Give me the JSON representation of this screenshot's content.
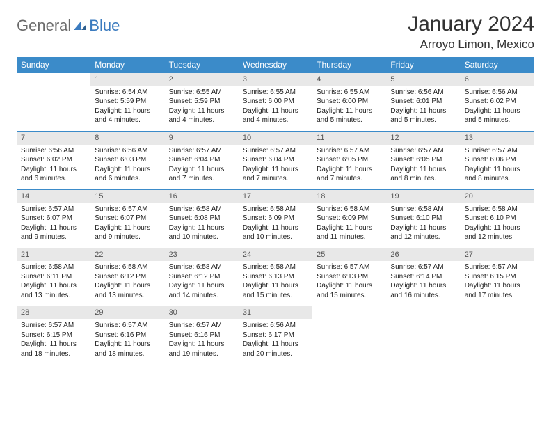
{
  "logo": {
    "text1": "General",
    "text2": "Blue"
  },
  "title": "January 2024",
  "location": "Arroyo Limon, Mexico",
  "colors": {
    "header_bg": "#3b8bc9",
    "header_fg": "#ffffff",
    "daynum_bg": "#e8e8e8",
    "row_border": "#3b8bc9",
    "logo_gray": "#6b6b6b",
    "logo_blue": "#3b7bbf"
  },
  "weekdays": [
    "Sunday",
    "Monday",
    "Tuesday",
    "Wednesday",
    "Thursday",
    "Friday",
    "Saturday"
  ],
  "weeks": [
    [
      null,
      {
        "n": "1",
        "sr": "Sunrise: 6:54 AM",
        "ss": "Sunset: 5:59 PM",
        "d1": "Daylight: 11 hours",
        "d2": "and 4 minutes."
      },
      {
        "n": "2",
        "sr": "Sunrise: 6:55 AM",
        "ss": "Sunset: 5:59 PM",
        "d1": "Daylight: 11 hours",
        "d2": "and 4 minutes."
      },
      {
        "n": "3",
        "sr": "Sunrise: 6:55 AM",
        "ss": "Sunset: 6:00 PM",
        "d1": "Daylight: 11 hours",
        "d2": "and 4 minutes."
      },
      {
        "n": "4",
        "sr": "Sunrise: 6:55 AM",
        "ss": "Sunset: 6:00 PM",
        "d1": "Daylight: 11 hours",
        "d2": "and 5 minutes."
      },
      {
        "n": "5",
        "sr": "Sunrise: 6:56 AM",
        "ss": "Sunset: 6:01 PM",
        "d1": "Daylight: 11 hours",
        "d2": "and 5 minutes."
      },
      {
        "n": "6",
        "sr": "Sunrise: 6:56 AM",
        "ss": "Sunset: 6:02 PM",
        "d1": "Daylight: 11 hours",
        "d2": "and 5 minutes."
      }
    ],
    [
      {
        "n": "7",
        "sr": "Sunrise: 6:56 AM",
        "ss": "Sunset: 6:02 PM",
        "d1": "Daylight: 11 hours",
        "d2": "and 6 minutes."
      },
      {
        "n": "8",
        "sr": "Sunrise: 6:56 AM",
        "ss": "Sunset: 6:03 PM",
        "d1": "Daylight: 11 hours",
        "d2": "and 6 minutes."
      },
      {
        "n": "9",
        "sr": "Sunrise: 6:57 AM",
        "ss": "Sunset: 6:04 PM",
        "d1": "Daylight: 11 hours",
        "d2": "and 7 minutes."
      },
      {
        "n": "10",
        "sr": "Sunrise: 6:57 AM",
        "ss": "Sunset: 6:04 PM",
        "d1": "Daylight: 11 hours",
        "d2": "and 7 minutes."
      },
      {
        "n": "11",
        "sr": "Sunrise: 6:57 AM",
        "ss": "Sunset: 6:05 PM",
        "d1": "Daylight: 11 hours",
        "d2": "and 7 minutes."
      },
      {
        "n": "12",
        "sr": "Sunrise: 6:57 AM",
        "ss": "Sunset: 6:05 PM",
        "d1": "Daylight: 11 hours",
        "d2": "and 8 minutes."
      },
      {
        "n": "13",
        "sr": "Sunrise: 6:57 AM",
        "ss": "Sunset: 6:06 PM",
        "d1": "Daylight: 11 hours",
        "d2": "and 8 minutes."
      }
    ],
    [
      {
        "n": "14",
        "sr": "Sunrise: 6:57 AM",
        "ss": "Sunset: 6:07 PM",
        "d1": "Daylight: 11 hours",
        "d2": "and 9 minutes."
      },
      {
        "n": "15",
        "sr": "Sunrise: 6:57 AM",
        "ss": "Sunset: 6:07 PM",
        "d1": "Daylight: 11 hours",
        "d2": "and 9 minutes."
      },
      {
        "n": "16",
        "sr": "Sunrise: 6:58 AM",
        "ss": "Sunset: 6:08 PM",
        "d1": "Daylight: 11 hours",
        "d2": "and 10 minutes."
      },
      {
        "n": "17",
        "sr": "Sunrise: 6:58 AM",
        "ss": "Sunset: 6:09 PM",
        "d1": "Daylight: 11 hours",
        "d2": "and 10 minutes."
      },
      {
        "n": "18",
        "sr": "Sunrise: 6:58 AM",
        "ss": "Sunset: 6:09 PM",
        "d1": "Daylight: 11 hours",
        "d2": "and 11 minutes."
      },
      {
        "n": "19",
        "sr": "Sunrise: 6:58 AM",
        "ss": "Sunset: 6:10 PM",
        "d1": "Daylight: 11 hours",
        "d2": "and 12 minutes."
      },
      {
        "n": "20",
        "sr": "Sunrise: 6:58 AM",
        "ss": "Sunset: 6:10 PM",
        "d1": "Daylight: 11 hours",
        "d2": "and 12 minutes."
      }
    ],
    [
      {
        "n": "21",
        "sr": "Sunrise: 6:58 AM",
        "ss": "Sunset: 6:11 PM",
        "d1": "Daylight: 11 hours",
        "d2": "and 13 minutes."
      },
      {
        "n": "22",
        "sr": "Sunrise: 6:58 AM",
        "ss": "Sunset: 6:12 PM",
        "d1": "Daylight: 11 hours",
        "d2": "and 13 minutes."
      },
      {
        "n": "23",
        "sr": "Sunrise: 6:58 AM",
        "ss": "Sunset: 6:12 PM",
        "d1": "Daylight: 11 hours",
        "d2": "and 14 minutes."
      },
      {
        "n": "24",
        "sr": "Sunrise: 6:58 AM",
        "ss": "Sunset: 6:13 PM",
        "d1": "Daylight: 11 hours",
        "d2": "and 15 minutes."
      },
      {
        "n": "25",
        "sr": "Sunrise: 6:57 AM",
        "ss": "Sunset: 6:13 PM",
        "d1": "Daylight: 11 hours",
        "d2": "and 15 minutes."
      },
      {
        "n": "26",
        "sr": "Sunrise: 6:57 AM",
        "ss": "Sunset: 6:14 PM",
        "d1": "Daylight: 11 hours",
        "d2": "and 16 minutes."
      },
      {
        "n": "27",
        "sr": "Sunrise: 6:57 AM",
        "ss": "Sunset: 6:15 PM",
        "d1": "Daylight: 11 hours",
        "d2": "and 17 minutes."
      }
    ],
    [
      {
        "n": "28",
        "sr": "Sunrise: 6:57 AM",
        "ss": "Sunset: 6:15 PM",
        "d1": "Daylight: 11 hours",
        "d2": "and 18 minutes."
      },
      {
        "n": "29",
        "sr": "Sunrise: 6:57 AM",
        "ss": "Sunset: 6:16 PM",
        "d1": "Daylight: 11 hours",
        "d2": "and 18 minutes."
      },
      {
        "n": "30",
        "sr": "Sunrise: 6:57 AM",
        "ss": "Sunset: 6:16 PM",
        "d1": "Daylight: 11 hours",
        "d2": "and 19 minutes."
      },
      {
        "n": "31",
        "sr": "Sunrise: 6:56 AM",
        "ss": "Sunset: 6:17 PM",
        "d1": "Daylight: 11 hours",
        "d2": "and 20 minutes."
      },
      null,
      null,
      null
    ]
  ]
}
